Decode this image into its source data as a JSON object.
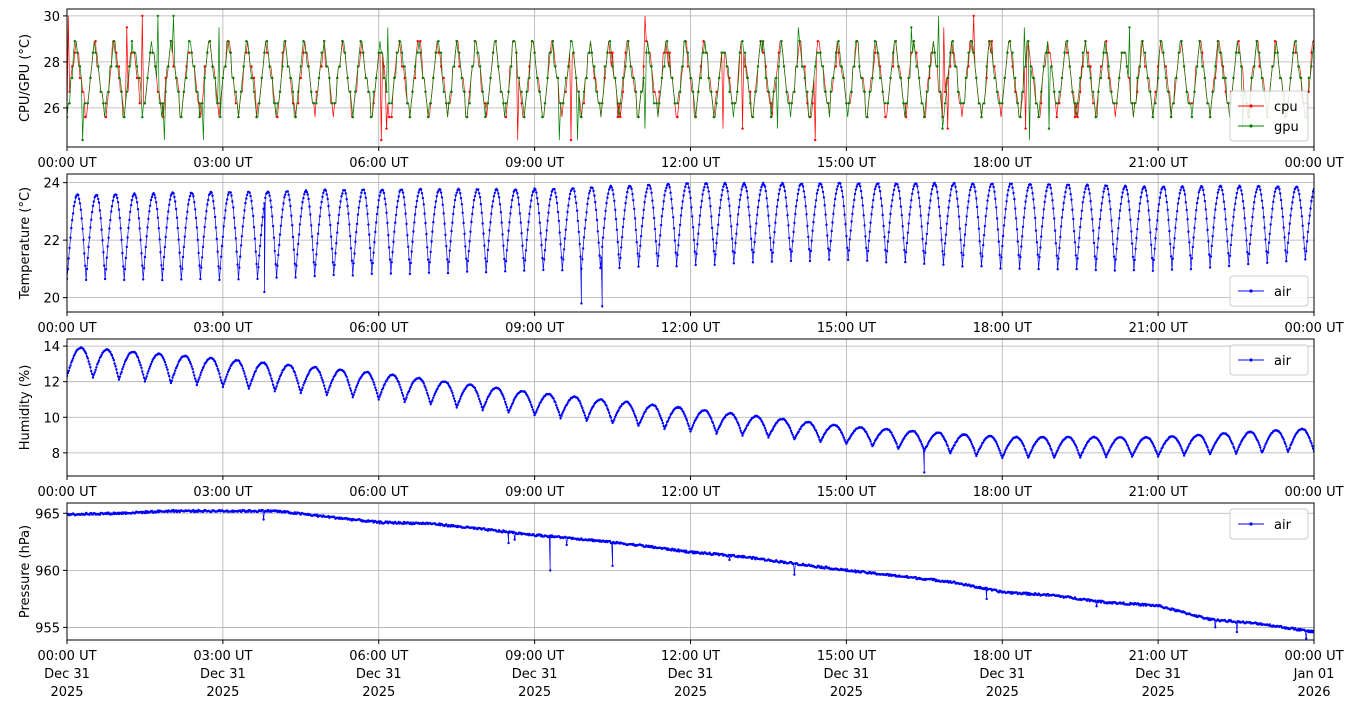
{
  "chart_data": [
    {
      "type": "line",
      "ylabel": "CPU/GPU (°C)",
      "xlim": [
        "00:00",
        "24:00"
      ],
      "ylim": [
        24.3,
        30.3
      ],
      "yticks": [
        26,
        28,
        30
      ],
      "grid": true,
      "legend_placement": "bottom-right",
      "series": [
        {
          "name": "cpu",
          "color": "#ff0000",
          "pattern": "sawtooth",
          "period_min": 22,
          "min": 25.6,
          "max": 29.0,
          "levels": [
            25.6,
            26.2,
            26.7,
            27.3,
            27.8,
            28.4,
            28.9
          ],
          "spikes_low": [
            24.6,
            25.1
          ],
          "spikes_high": [
            29.5,
            30.0
          ]
        },
        {
          "name": "gpu",
          "color": "#008000",
          "pattern": "sawtooth",
          "period_min": 22,
          "min": 25.6,
          "max": 29.0,
          "levels": [
            25.6,
            26.2,
            26.7,
            27.3,
            27.8,
            28.4,
            28.9
          ],
          "spikes_low": [
            24.6,
            25.1
          ],
          "spikes_high": [
            29.5,
            30.0
          ]
        }
      ]
    },
    {
      "type": "line",
      "ylabel": "Temperature (°C)",
      "xlim": [
        "00:00",
        "24:00"
      ],
      "ylim": [
        19.5,
        24.3
      ],
      "yticks": [
        20,
        22,
        24
      ],
      "grid": true,
      "legend_placement": "bottom-right",
      "series": [
        {
          "name": "air",
          "color": "#0000ff",
          "pattern": "cycle",
          "period_min": 22,
          "x": [
            0,
            3,
            6,
            9,
            12,
            15,
            18,
            21,
            24
          ],
          "y_min": [
            20.6,
            20.6,
            20.8,
            20.9,
            21.1,
            21.3,
            21.0,
            20.9,
            21.3
          ],
          "y_max": [
            23.6,
            23.7,
            23.8,
            23.8,
            24.0,
            24.0,
            24.0,
            23.9,
            23.9
          ],
          "dips": [
            {
              "x": 9.9,
              "y": 19.8
            },
            {
              "x": 10.3,
              "y": 19.7
            },
            {
              "x": 3.8,
              "y": 20.2
            }
          ]
        }
      ]
    },
    {
      "type": "line",
      "ylabel": "Humidity (%)",
      "xlim": [
        "00:00",
        "24:00"
      ],
      "ylim": [
        6.7,
        14.4
      ],
      "yticks": [
        8,
        10,
        12,
        14
      ],
      "grid": true,
      "legend_placement": "top-right",
      "series": [
        {
          "name": "air",
          "color": "#0000ff",
          "pattern": "cycle",
          "period_min": 30,
          "x": [
            0,
            3,
            6,
            9,
            12,
            15,
            18,
            21,
            24
          ],
          "y_min": [
            12.3,
            11.7,
            11.0,
            10.1,
            9.2,
            8.5,
            7.7,
            7.8,
            8.1
          ],
          "y_max": [
            14.0,
            13.3,
            12.5,
            11.4,
            10.5,
            9.5,
            8.9,
            8.9,
            9.4
          ],
          "dips": [
            {
              "x": 16.5,
              "y": 6.9
            }
          ]
        }
      ]
    },
    {
      "type": "line",
      "ylabel": "Pressure (hPa)",
      "xlim": [
        "00:00",
        "24:00"
      ],
      "ylim": [
        953.9,
        965.9
      ],
      "yticks": [
        955,
        960,
        965
      ],
      "grid": true,
      "legend_placement": "top-right",
      "series": [
        {
          "name": "air",
          "color": "#0000ff",
          "pattern": "trend",
          "x": [
            0,
            1,
            2,
            3,
            4,
            5,
            6,
            7,
            8,
            9,
            10,
            11,
            12,
            13,
            14,
            15,
            16,
            17,
            18,
            19,
            20,
            21,
            22,
            23,
            24
          ],
          "y": [
            964.9,
            965.0,
            965.2,
            965.2,
            965.2,
            964.7,
            964.2,
            964.1,
            963.6,
            963.1,
            962.7,
            962.2,
            961.6,
            961.2,
            960.6,
            960.0,
            959.5,
            959.0,
            958.1,
            957.8,
            957.2,
            956.9,
            955.7,
            955.3,
            954.6
          ],
          "dips": [
            {
              "x": 9.3,
              "y": 960.0
            },
            {
              "x": 10.5,
              "y": 960.4
            },
            {
              "x": 8.5,
              "y": 962.4
            },
            {
              "x": 17.7,
              "y": 957.5
            }
          ]
        }
      ]
    }
  ],
  "xticks": {
    "times": [
      "00:00 UT",
      "03:00 UT",
      "06:00 UT",
      "09:00 UT",
      "12:00 UT",
      "15:00 UT",
      "18:00 UT",
      "21:00 UT",
      "00:00 UT"
    ],
    "days": [
      "Dec 31",
      "Dec 31",
      "Dec 31",
      "Dec 31",
      "Dec 31",
      "Dec 31",
      "Dec 31",
      "Dec 31",
      "Jan 01"
    ],
    "years": [
      "2025",
      "2025",
      "2025",
      "2025",
      "2025",
      "2025",
      "2025",
      "2025",
      "2026"
    ]
  }
}
